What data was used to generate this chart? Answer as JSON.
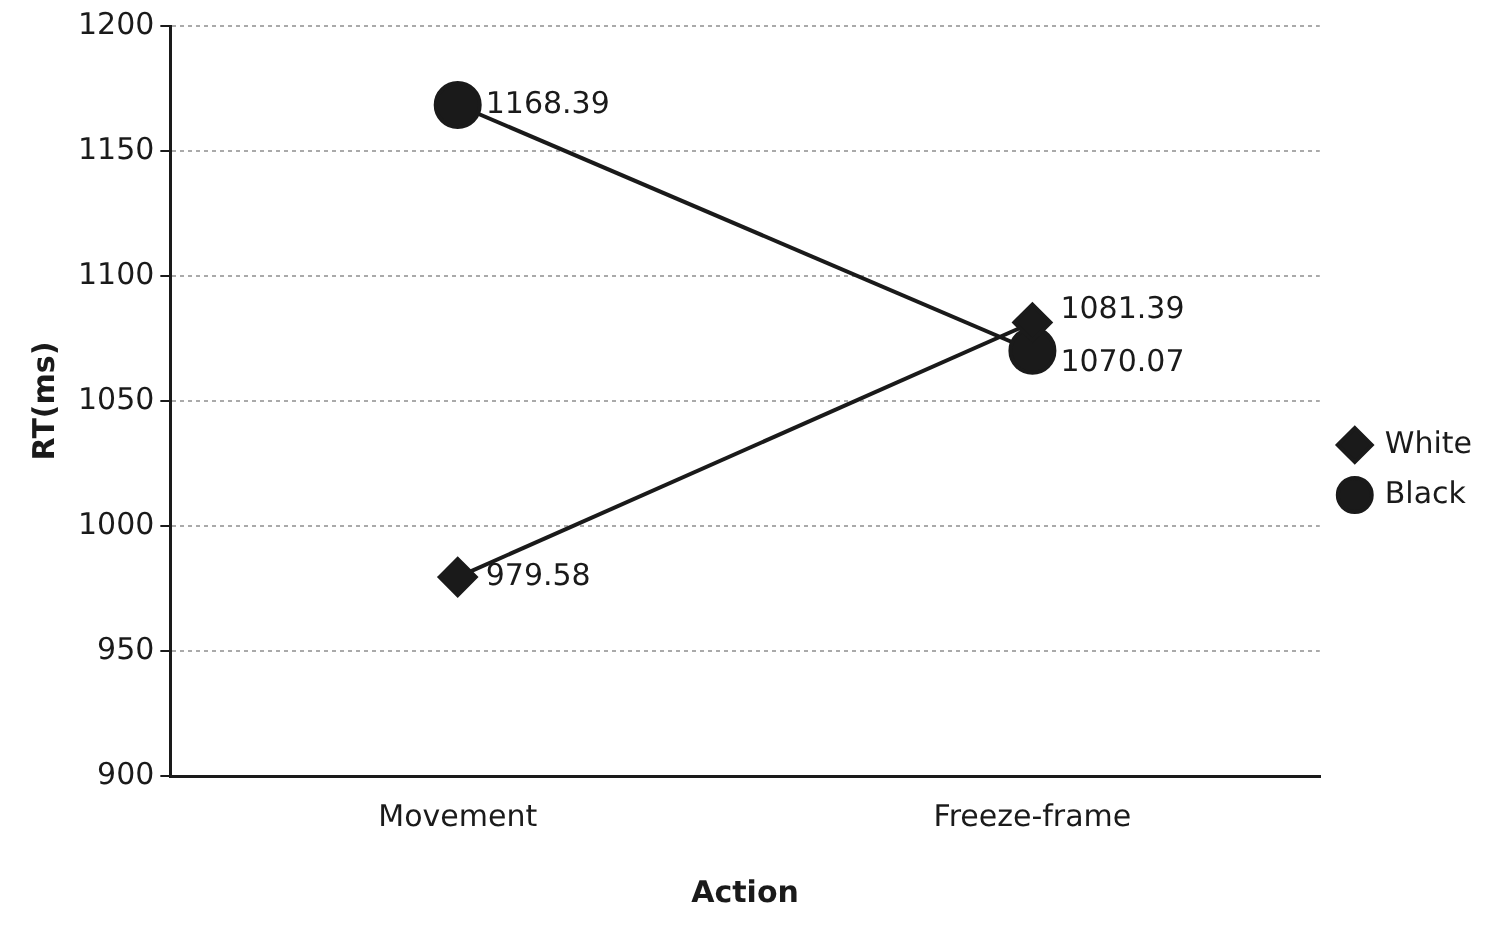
{
  "chart_data": {
    "type": "line",
    "xlabel": "Action",
    "ylabel": "RT(ms)",
    "categories": [
      "Movement",
      "Freeze-frame"
    ],
    "series": [
      {
        "name": "White",
        "color": "#1a1a1a",
        "values": [
          979.58,
          1081.39
        ],
        "marker": "diamond"
      },
      {
        "name": "Black",
        "color": "#1a1a1a",
        "values": [
          1168.39,
          1070.07
        ],
        "marker": "circle"
      }
    ],
    "ylim": [
      900,
      1200
    ],
    "yticks": [
      900,
      950,
      1000,
      1050,
      1100,
      1150,
      1200
    ],
    "grid": "y",
    "legend": "right",
    "data_labels": true,
    "line_style": "solid"
  }
}
